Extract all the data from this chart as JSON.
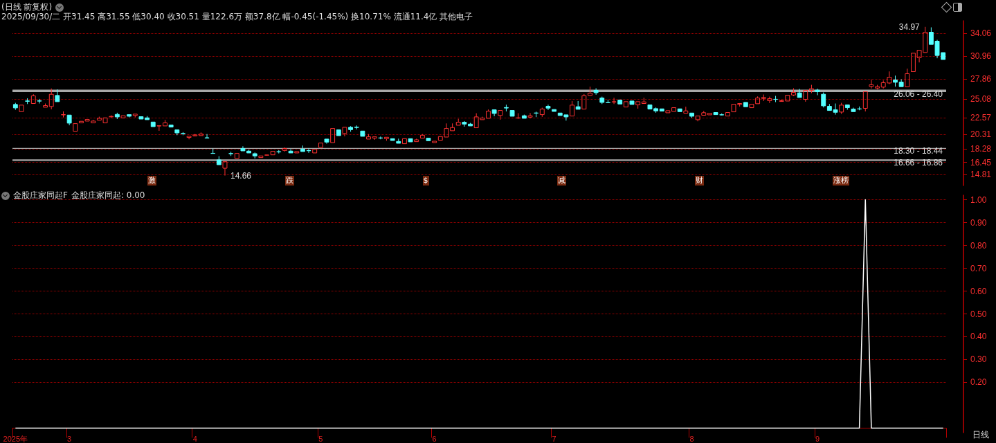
{
  "chart_data": [
    {
      "type": "candlestick",
      "title": "(日线 前复权)",
      "subtitle": "2025/09/30/二 开31.45 高31.55 低30.40 收30.51 量122.6万 额37.8亿 幅-0.45(-1.45%) 换10.71% 流通11.4亿 其他电子",
      "ohlc": [
        [
          24.37,
          24.59,
          23.64,
          23.9
        ],
        [
          23.39,
          24.3,
          23.33,
          24.28
        ],
        [
          24.85,
          25.22,
          24.43,
          24.8
        ],
        [
          24.5,
          25.76,
          24.37,
          25.54
        ],
        [
          24.86,
          25.13,
          24.5,
          24.83
        ],
        [
          23.99,
          24.5,
          23.97,
          24.21
        ],
        [
          24.09,
          26.55,
          23.71,
          25.76
        ],
        [
          25.6,
          26.42,
          24.72,
          24.75
        ],
        [
          22.95,
          23.42,
          22.6,
          22.98
        ],
        [
          22.92,
          22.93,
          21.53,
          21.82
        ],
        [
          20.71,
          21.76,
          20.7,
          21.75
        ],
        [
          21.85,
          22.1,
          21.83,
          22.07
        ],
        [
          22.1,
          22.45,
          22.04,
          22.32
        ],
        [
          21.85,
          22.26,
          21.83,
          22.1
        ],
        [
          22.23,
          22.7,
          22.22,
          22.48
        ],
        [
          21.85,
          22.55,
          21.83,
          22.54
        ],
        [
          22.68,
          22.89,
          22.51,
          22.74
        ],
        [
          23.01,
          23.24,
          22.38,
          22.67
        ],
        [
          22.54,
          22.95,
          22.45,
          22.83
        ],
        [
          22.98,
          23.05,
          22.6,
          22.76
        ],
        [
          22.86,
          23.14,
          22.6,
          23.05
        ],
        [
          22.7,
          22.71,
          22.29,
          22.38
        ],
        [
          22.54,
          22.79,
          22.28,
          22.29
        ],
        [
          21.97,
          22.1,
          21.33,
          21.34
        ],
        [
          21.43,
          21.5,
          20.77,
          21.46
        ],
        [
          21.44,
          22.26,
          21.34,
          21.85
        ],
        [
          21.56,
          21.58,
          21.22,
          21.28
        ],
        [
          20.9,
          20.92,
          20.17,
          20.49
        ],
        [
          20.41,
          20.59,
          20.17,
          20.39
        ],
        [
          19.86,
          20.05,
          19.61,
          20.02
        ],
        [
          20.08,
          20.33,
          20.02,
          20.21
        ],
        [
          20.12,
          20.55,
          20.11,
          20.33
        ],
        [
          19.82,
          20.33,
          19.76,
          19.78
        ],
        [
          17.7,
          18.35,
          17.66,
          17.68
        ],
        [
          16.8,
          17.3,
          16.01,
          16.14
        ],
        [
          15.66,
          16.56,
          14.66,
          16.55
        ],
        [
          17.67,
          17.91,
          17.34,
          17.64
        ],
        [
          16.99,
          17.7,
          16.97,
          17.68
        ],
        [
          18.35,
          18.66,
          17.97,
          18.03
        ],
        [
          18.0,
          18.19,
          17.65,
          17.75
        ],
        [
          17.65,
          17.81,
          16.99,
          17.34
        ],
        [
          17.11,
          17.43,
          17.05,
          17.34
        ],
        [
          17.44,
          17.48,
          17.42,
          17.47
        ],
        [
          17.49,
          17.98,
          17.48,
          17.97
        ],
        [
          17.92,
          18.12,
          17.68,
          17.88
        ],
        [
          18.09,
          18.5,
          17.94,
          18.35
        ],
        [
          18.0,
          18.28,
          17.74,
          17.75
        ],
        [
          17.75,
          18.06,
          17.73,
          17.94
        ],
        [
          18.28,
          18.76,
          17.87,
          17.94
        ],
        [
          18.07,
          18.38,
          17.75,
          18.05
        ],
        [
          17.75,
          18.26,
          17.74,
          18.25
        ],
        [
          18.5,
          19.11,
          18.49,
          19.1
        ],
        [
          19.64,
          19.76,
          19.01,
          19.23
        ],
        [
          19.16,
          21.1,
          19.15,
          21.09
        ],
        [
          20.9,
          20.92,
          20.09,
          20.11
        ],
        [
          20.4,
          21.27,
          20.02,
          21.25
        ],
        [
          21.25,
          21.41,
          20.65,
          20.93
        ],
        [
          21.27,
          21.5,
          20.96,
          21.23
        ],
        [
          20.74,
          20.75,
          20.0,
          20.02
        ],
        [
          19.64,
          20.33,
          19.62,
          19.95
        ],
        [
          19.77,
          20.08,
          19.54,
          19.95
        ],
        [
          19.8,
          19.99,
          19.61,
          19.78
        ],
        [
          19.7,
          19.95,
          19.42,
          19.89
        ],
        [
          19.7,
          19.76,
          19.32,
          19.45
        ],
        [
          19.32,
          19.7,
          19.06,
          19.07
        ],
        [
          19.01,
          19.71,
          19.0,
          19.7
        ],
        [
          19.7,
          19.71,
          19.2,
          19.26
        ],
        [
          19.29,
          19.7,
          19.28,
          19.54
        ],
        [
          19.77,
          20.33,
          19.76,
          20.17
        ],
        [
          19.76,
          19.77,
          19.3,
          19.42
        ],
        [
          19.16,
          19.36,
          19.1,
          19.35
        ],
        [
          19.48,
          20.08,
          19.47,
          19.99
        ],
        [
          19.92,
          21.78,
          19.8,
          21.09
        ],
        [
          20.78,
          21.78,
          20.77,
          21.22
        ],
        [
          21.53,
          22.41,
          21.52,
          21.94
        ],
        [
          21.94,
          22.1,
          21.34,
          21.69
        ],
        [
          21.69,
          21.85,
          21.37,
          21.44
        ],
        [
          21.19,
          23.17,
          21.18,
          22.67
        ],
        [
          22.29,
          22.7,
          22.16,
          22.51
        ],
        [
          22.48,
          23.68,
          22.47,
          23.46
        ],
        [
          23.64,
          23.66,
          22.76,
          23.14
        ],
        [
          22.86,
          23.56,
          22.29,
          23.55
        ],
        [
          23.95,
          24.34,
          23.42,
          23.88
        ],
        [
          23.55,
          23.64,
          22.75,
          22.76
        ],
        [
          22.51,
          23.17,
          22.41,
          22.54
        ],
        [
          22.83,
          22.98,
          22.41,
          22.48
        ],
        [
          22.64,
          23.2,
          22.48,
          22.83
        ],
        [
          23.21,
          23.39,
          22.64,
          23.18
        ],
        [
          22.98,
          23.93,
          22.67,
          23.74
        ],
        [
          24.12,
          24.34,
          23.61,
          23.87
        ],
        [
          23.68,
          23.77,
          23.33,
          23.42
        ],
        [
          23.2,
          23.33,
          22.73,
          22.86
        ],
        [
          22.95,
          23.08,
          22.16,
          22.67
        ],
        [
          22.79,
          24.84,
          22.78,
          24.28
        ],
        [
          24.06,
          24.84,
          23.58,
          23.71
        ],
        [
          23.74,
          25.79,
          23.73,
          25.57
        ],
        [
          25.6,
          26.8,
          25.59,
          25.92
        ],
        [
          26.3,
          26.58,
          25.7,
          25.98
        ],
        [
          25.25,
          25.44,
          24.43,
          24.65
        ],
        [
          24.63,
          25.0,
          24.56,
          24.6
        ],
        [
          24.71,
          25.29,
          24.43,
          24.74
        ],
        [
          24.97,
          25.0,
          24.35,
          24.43
        ],
        [
          24.02,
          24.76,
          24.01,
          24.75
        ],
        [
          24.84,
          24.9,
          24.34,
          24.37
        ],
        [
          24.31,
          24.78,
          23.8,
          24.75
        ],
        [
          24.5,
          25.29,
          24.49,
          24.72
        ],
        [
          24.31,
          24.33,
          23.72,
          23.74
        ],
        [
          23.8,
          23.96,
          23.24,
          23.49
        ],
        [
          23.77,
          23.8,
          23.43,
          23.46
        ],
        [
          23.23,
          23.55,
          23.18,
          23.52
        ],
        [
          23.42,
          24.02,
          23.4,
          23.93
        ],
        [
          23.77,
          23.84,
          23.33,
          23.39
        ],
        [
          23.17,
          24.06,
          23.08,
          23.49
        ],
        [
          23.2,
          23.21,
          22.54,
          22.76
        ],
        [
          22.29,
          22.8,
          22.07,
          22.79
        ],
        [
          22.89,
          23.49,
          22.88,
          23.24
        ],
        [
          22.95,
          23.18,
          22.94,
          23.17
        ],
        [
          23.27,
          23.39,
          22.86,
          22.98
        ],
        [
          22.96,
          23.14,
          22.89,
          22.94
        ],
        [
          22.79,
          23.28,
          22.78,
          23.27
        ],
        [
          23.36,
          24.41,
          23.35,
          24.4
        ],
        [
          24.37,
          24.56,
          24.09,
          24.5
        ],
        [
          24.65,
          24.75,
          23.96,
          24.06
        ],
        [
          23.93,
          24.41,
          23.92,
          24.4
        ],
        [
          24.47,
          25.47,
          24.4,
          25.25
        ],
        [
          25.19,
          25.73,
          24.84,
          25.32
        ],
        [
          24.88,
          25.44,
          24.56,
          25.16
        ],
        [
          25.08,
          25.54,
          24.69,
          25.06
        ],
        [
          24.78,
          25.03,
          24.77,
          24.88
        ],
        [
          24.84,
          25.64,
          24.83,
          25.63
        ],
        [
          25.66,
          26.58,
          25.51,
          26.01
        ],
        [
          25.95,
          26.49,
          25.31,
          25.32
        ],
        [
          25.07,
          26.42,
          24.75,
          26.3
        ],
        [
          26.3,
          27.05,
          25.92,
          26.52
        ],
        [
          26.33,
          26.52,
          25.63,
          26.11
        ],
        [
          25.76,
          26.01,
          23.96,
          24.18
        ],
        [
          24.12,
          24.43,
          23.49,
          23.55
        ],
        [
          23.64,
          24.5,
          22.98,
          23.3
        ],
        [
          23.33,
          24.59,
          23.08,
          24.28
        ],
        [
          24.31,
          24.32,
          23.65,
          23.93
        ],
        [
          23.74,
          23.93,
          23.33,
          23.39
        ],
        [
          23.77,
          24.09,
          23.58,
          23.75
        ],
        [
          23.84,
          26.12,
          23.42,
          26.11
        ],
        [
          26.83,
          27.75,
          26.55,
          27.05
        ],
        [
          26.61,
          27.05,
          26.42,
          26.8
        ],
        [
          26.74,
          27.65,
          26.55,
          27.34
        ],
        [
          27.3,
          28.88,
          27.15,
          28.09
        ],
        [
          27.71,
          28.31,
          26.8,
          27.4
        ],
        [
          27.43,
          27.81,
          26.79,
          26.8
        ],
        [
          26.77,
          29.26,
          26.76,
          28.57
        ],
        [
          28.85,
          31.38,
          28.79,
          31.37
        ],
        [
          30.74,
          31.79,
          30.11,
          31.78
        ],
        [
          31.47,
          34.97,
          31.46,
          34.24
        ],
        [
          34.24,
          34.9,
          32.48,
          32.57
        ],
        [
          33.01,
          33.2,
          30.68,
          31.06
        ],
        [
          31.45,
          31.55,
          30.4,
          30.51
        ]
      ],
      "ylim": [
        13.3,
        35.8
      ],
      "yticks": [
        14.81,
        16.45,
        18.28,
        20.31,
        22.57,
        25.08,
        27.86,
        30.96,
        34.06
      ],
      "grid": "y",
      "tick_labels": "y",
      "bands": [
        {
          "axis": "y",
          "from": 18.3,
          "to": 18.44,
          "label": "18.30 - 18.44",
          "color": "#a8a8a8"
        },
        {
          "axis": "y",
          "from": 16.66,
          "to": 16.86,
          "label": "16.66 - 16.86",
          "color": "#a8a8a8"
        },
        {
          "axis": "y",
          "from": 26.06,
          "to": 26.4,
          "label": "26.06 - 26.40",
          "color": "#a8a8a8"
        }
      ],
      "annotations": [
        "14.66",
        "34.97",
        "激",
        "跌",
        "$",
        "减",
        "财",
        "涨榜"
      ]
    },
    {
      "type": "line",
      "title": "金股庄家同起F",
      "xlabel": "日线",
      "categories": [
        "2025年",
        null,
        null,
        null,
        null,
        null,
        null,
        null,
        null,
        "3",
        null,
        null,
        null,
        null,
        null,
        null,
        null,
        null,
        null,
        null,
        null,
        null,
        null,
        null,
        null,
        null,
        null,
        null,
        null,
        null,
        "4",
        null,
        null,
        null,
        null,
        null,
        null,
        null,
        null,
        null,
        null,
        null,
        null,
        null,
        null,
        null,
        null,
        null,
        null,
        null,
        null,
        "5",
        null,
        null,
        null,
        null,
        null,
        null,
        null,
        null,
        null,
        null,
        null,
        null,
        null,
        null,
        null,
        null,
        null,
        null,
        "6",
        null,
        null,
        null,
        null,
        null,
        null,
        null,
        null,
        null,
        null,
        null,
        null,
        null,
        null,
        null,
        null,
        null,
        null,
        null,
        "7",
        null,
        null,
        null,
        null,
        null,
        null,
        null,
        null,
        null,
        null,
        null,
        null,
        null,
        null,
        null,
        null,
        null,
        null,
        null,
        null,
        null,
        null,
        "8",
        null,
        null,
        null,
        null,
        null,
        null,
        null,
        null,
        null,
        null,
        null,
        null,
        null,
        null,
        null,
        null,
        null,
        null,
        null,
        null,
        "9",
        null,
        null,
        null,
        null,
        null,
        null,
        null,
        null,
        null,
        null,
        null,
        null,
        null,
        null,
        null,
        null,
        null,
        null,
        null,
        null,
        null
      ],
      "series": [
        {
          "color": "#ffffff",
          "values": [
            0,
            0,
            0,
            0,
            0,
            0,
            0,
            0,
            0,
            0,
            0,
            0,
            0,
            0,
            0,
            0,
            0,
            0,
            0,
            0,
            0,
            0,
            0,
            0,
            0,
            0,
            0,
            0,
            0,
            0,
            0,
            0,
            0,
            0,
            0,
            0,
            0,
            0,
            0,
            0,
            0,
            0,
            0,
            0,
            0,
            0,
            0,
            0,
            0,
            0,
            0,
            0,
            0,
            0,
            0,
            0,
            0,
            0,
            0,
            0,
            0,
            0,
            0,
            0,
            0,
            0,
            0,
            0,
            0,
            0,
            0,
            0,
            0,
            0,
            0,
            0,
            0,
            0,
            0,
            0,
            0,
            0,
            0,
            0,
            0,
            0,
            0,
            0,
            0,
            0,
            0,
            0,
            0,
            0,
            0,
            0,
            0,
            0,
            0,
            0,
            0,
            0,
            0,
            0,
            0,
            0,
            0,
            0,
            0,
            0,
            0,
            0,
            0,
            0,
            0,
            0,
            0,
            0,
            0,
            0,
            0,
            0,
            0,
            0,
            0,
            0,
            0,
            0,
            0,
            0,
            0,
            0,
            0,
            0,
            0,
            0,
            0,
            0,
            0,
            0,
            0,
            0,
            1,
            0,
            0,
            0,
            0,
            0,
            0,
            0,
            0,
            0,
            0,
            0,
            0,
            0
          ]
        }
      ],
      "ylim": [
        -0.02,
        1.02
      ],
      "yticks": [
        {
          "value": 0.2,
          "label": "0.20"
        },
        {
          "value": 0.3,
          "label": "0.30"
        },
        {
          "value": 0.4,
          "label": "0.40"
        },
        {
          "value": 0.5,
          "label": "0.50"
        },
        {
          "value": 0.6,
          "label": "0.60"
        },
        {
          "value": 0.7,
          "label": "0.70"
        },
        {
          "value": 0.8,
          "label": "0.80"
        },
        {
          "value": 0.9,
          "label": "0.90"
        },
        {
          "value": 1.0,
          "label": "1.00"
        }
      ],
      "grid": "y",
      "marker": "none",
      "line_style": "solid",
      "annotations": [
        "金股庄家同起: 0.00"
      ]
    }
  ]
}
